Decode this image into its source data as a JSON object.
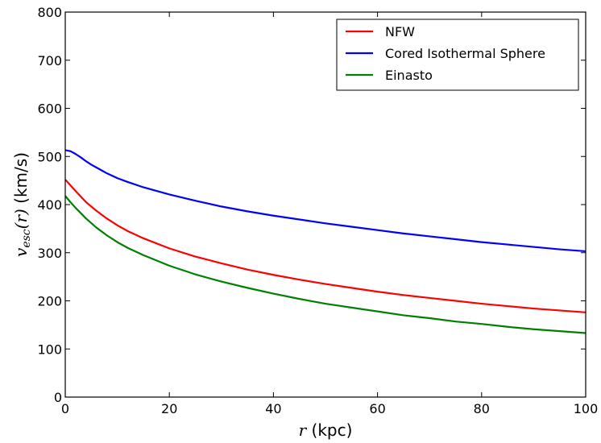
{
  "chart_data": {
    "type": "line",
    "title": "",
    "xlabel": {
      "math": "r",
      "text": " (kpc)"
    },
    "ylabel": {
      "math": "v",
      "math_sub": "esc",
      "math_arg": "(r)",
      "text": " (km/s)"
    },
    "xlim": [
      0,
      100
    ],
    "ylim": [
      0,
      800
    ],
    "xticks": [
      0,
      20,
      40,
      60,
      80,
      100
    ],
    "yticks": [
      0,
      100,
      200,
      300,
      400,
      500,
      600,
      700,
      800
    ],
    "grid": false,
    "legend_position": "top-right",
    "series": [
      {
        "name": "NFW",
        "color": "#ff0000",
        "points": [
          [
            0,
            452
          ],
          [
            1,
            440
          ],
          [
            2,
            428
          ],
          [
            4,
            405
          ],
          [
            6,
            387
          ],
          [
            8,
            371
          ],
          [
            10,
            357
          ],
          [
            12,
            345
          ],
          [
            15,
            330
          ],
          [
            20,
            309
          ],
          [
            25,
            292
          ],
          [
            30,
            278
          ],
          [
            35,
            265
          ],
          [
            40,
            254
          ],
          [
            45,
            244
          ],
          [
            50,
            235
          ],
          [
            55,
            227
          ],
          [
            60,
            219
          ],
          [
            65,
            212
          ],
          [
            70,
            206
          ],
          [
            75,
            200
          ],
          [
            80,
            194
          ],
          [
            85,
            189
          ],
          [
            90,
            184
          ],
          [
            95,
            180
          ],
          [
            100,
            176
          ]
        ]
      },
      {
        "name": "Cored Isothermal Sphere",
        "color": "#0000ff",
        "points": [
          [
            0,
            513
          ],
          [
            1,
            511
          ],
          [
            2,
            505
          ],
          [
            3,
            498
          ],
          [
            4,
            490
          ],
          [
            5,
            483
          ],
          [
            6,
            477
          ],
          [
            8,
            465
          ],
          [
            10,
            455
          ],
          [
            12,
            447
          ],
          [
            15,
            436
          ],
          [
            20,
            421
          ],
          [
            25,
            408
          ],
          [
            30,
            396
          ],
          [
            35,
            386
          ],
          [
            40,
            377
          ],
          [
            45,
            369
          ],
          [
            50,
            361
          ],
          [
            55,
            354
          ],
          [
            60,
            347
          ],
          [
            65,
            340
          ],
          [
            70,
            334
          ],
          [
            75,
            328
          ],
          [
            80,
            322
          ],
          [
            85,
            317
          ],
          [
            90,
            312
          ],
          [
            95,
            307
          ],
          [
            100,
            303
          ]
        ]
      },
      {
        "name": "Einasto",
        "color": "#008000",
        "points": [
          [
            0,
            418
          ],
          [
            1,
            405
          ],
          [
            2,
            393
          ],
          [
            4,
            371
          ],
          [
            6,
            352
          ],
          [
            8,
            336
          ],
          [
            10,
            322
          ],
          [
            12,
            310
          ],
          [
            15,
            295
          ],
          [
            20,
            273
          ],
          [
            25,
            255
          ],
          [
            30,
            240
          ],
          [
            35,
            227
          ],
          [
            40,
            215
          ],
          [
            45,
            204
          ],
          [
            50,
            194
          ],
          [
            55,
            186
          ],
          [
            60,
            178
          ],
          [
            65,
            170
          ],
          [
            70,
            164
          ],
          [
            75,
            157
          ],
          [
            80,
            152
          ],
          [
            85,
            146
          ],
          [
            90,
            141
          ],
          [
            95,
            137
          ],
          [
            100,
            133
          ]
        ]
      }
    ]
  }
}
